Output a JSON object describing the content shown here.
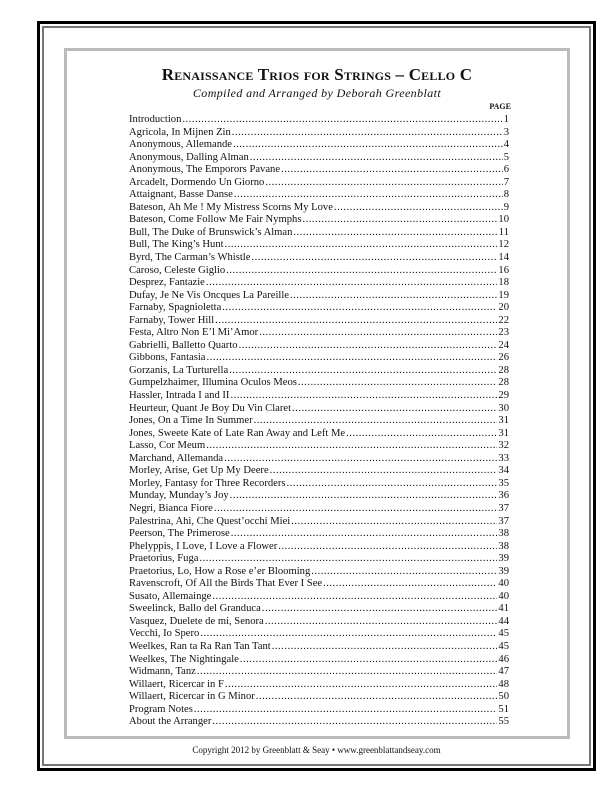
{
  "header": {
    "title": "Renaissance Trios for Strings – Cello C",
    "subtitle": "Compiled and Arranged by Deborah Greenblatt",
    "page_column_label": "PAGE"
  },
  "toc": [
    {
      "title": "Introduction",
      "page": "1"
    },
    {
      "title": "Agricola, In Mijnen Zin",
      "page": "3"
    },
    {
      "title": "Anonymous, Allemande",
      "page": "4"
    },
    {
      "title": "Anonymous, Dalling Alman",
      "page": "5"
    },
    {
      "title": "Anonymous, The Emporors Pavane",
      "page": "6"
    },
    {
      "title": "Arcadelt, Dormendo Un Giorno",
      "page": "7"
    },
    {
      "title": "Attaignant, Basse Danse",
      "page": "8"
    },
    {
      "title": "Bateson, Ah Me ! My Mistress Scorns My Love",
      "page": "9"
    },
    {
      "title": "Bateson, Come Follow Me Fair Nymphs",
      "page": "10"
    },
    {
      "title": "Bull, The Duke of Brunswick’s Alman",
      "page": "11"
    },
    {
      "title": "Bull, The King’s Hunt",
      "page": "12"
    },
    {
      "title": "Byrd, The Carman’s Whistle",
      "page": "14"
    },
    {
      "title": "Caroso, Celeste Giglio",
      "page": "16"
    },
    {
      "title": "Desprez, Fantazie",
      "page": "18"
    },
    {
      "title": "Dufay, Je Ne Vis Oncques La Pareille",
      "page": "19"
    },
    {
      "title": "Farnaby, Spagnioletta",
      "page": "20"
    },
    {
      "title": "Farnaby, Tower Hill",
      "page": "22"
    },
    {
      "title": "Festa, Altro Non E’l Mi’Amor",
      "page": "23"
    },
    {
      "title": "Gabrielli, Balletto Quarto",
      "page": "24"
    },
    {
      "title": "Gibbons, Fantasia",
      "page": "26"
    },
    {
      "title": "Gorzanis, La Turturella",
      "page": "28"
    },
    {
      "title": "Gumpelzhaimer, Illumina Oculos Meos",
      "page": "28"
    },
    {
      "title": "Hassler, Intrada I and II",
      "page": "29"
    },
    {
      "title": "Heurteur, Quant Je Boy Du Vin Claret",
      "page": "30"
    },
    {
      "title": "Jones, On a Time In Summer",
      "page": "31"
    },
    {
      "title": "Jones, Sweete Kate of Late Ran Away and Left Me",
      "page": "31"
    },
    {
      "title": "Lasso, Cor Meum",
      "page": "32"
    },
    {
      "title": "Marchand, Allemanda",
      "page": "33"
    },
    {
      "title": "Morley, Arise, Get Up My Deere",
      "page": "34"
    },
    {
      "title": "Morley, Fantasy for Three Recorders",
      "page": "35"
    },
    {
      "title": "Munday, Munday’s Joy",
      "page": "36"
    },
    {
      "title": "Negri, Bianca Fiore",
      "page": "37"
    },
    {
      "title": "Palestrina, Ahi, Che Quest’occhi Miei",
      "page": "37"
    },
    {
      "title": "Peerson, The Primerose",
      "page": "38"
    },
    {
      "title": "Phelyppis, I Love, I Love a Flower",
      "page": "38"
    },
    {
      "title": "Praetorius, Fuga",
      "page": "39"
    },
    {
      "title": "Praetorius, Lo, How a Rose e’er Blooming",
      "page": "39"
    },
    {
      "title": "Ravenscroft, Of All the Birds That Ever I See",
      "page": "40"
    },
    {
      "title": "Susato, Allemainge",
      "page": "40"
    },
    {
      "title": "Sweelinck, Ballo del Granduca",
      "page": "41"
    },
    {
      "title": "Vasquez, Duelete de mi, Senora",
      "page": "44"
    },
    {
      "title": "Vecchi, Io Spero",
      "page": "45"
    },
    {
      "title": "Weelkes, Ran ta Ra Ran Tan Tant",
      "page": "45"
    },
    {
      "title": "Weelkes, The Nightingale",
      "page": "46"
    },
    {
      "title": "Widmann, Tanz",
      "page": "47"
    },
    {
      "title": "Willaert, Ricercar in F",
      "page": "48"
    },
    {
      "title": "Willaert, Ricercar in G Minor",
      "page": "50"
    },
    {
      "title": "Program Notes",
      "page": "51"
    },
    {
      "title": "About the Arranger",
      "page": "55"
    }
  ],
  "footer": {
    "copyright": "Copyright 2012 by Greenblatt & Seay • www.greenblattandseay.com"
  }
}
